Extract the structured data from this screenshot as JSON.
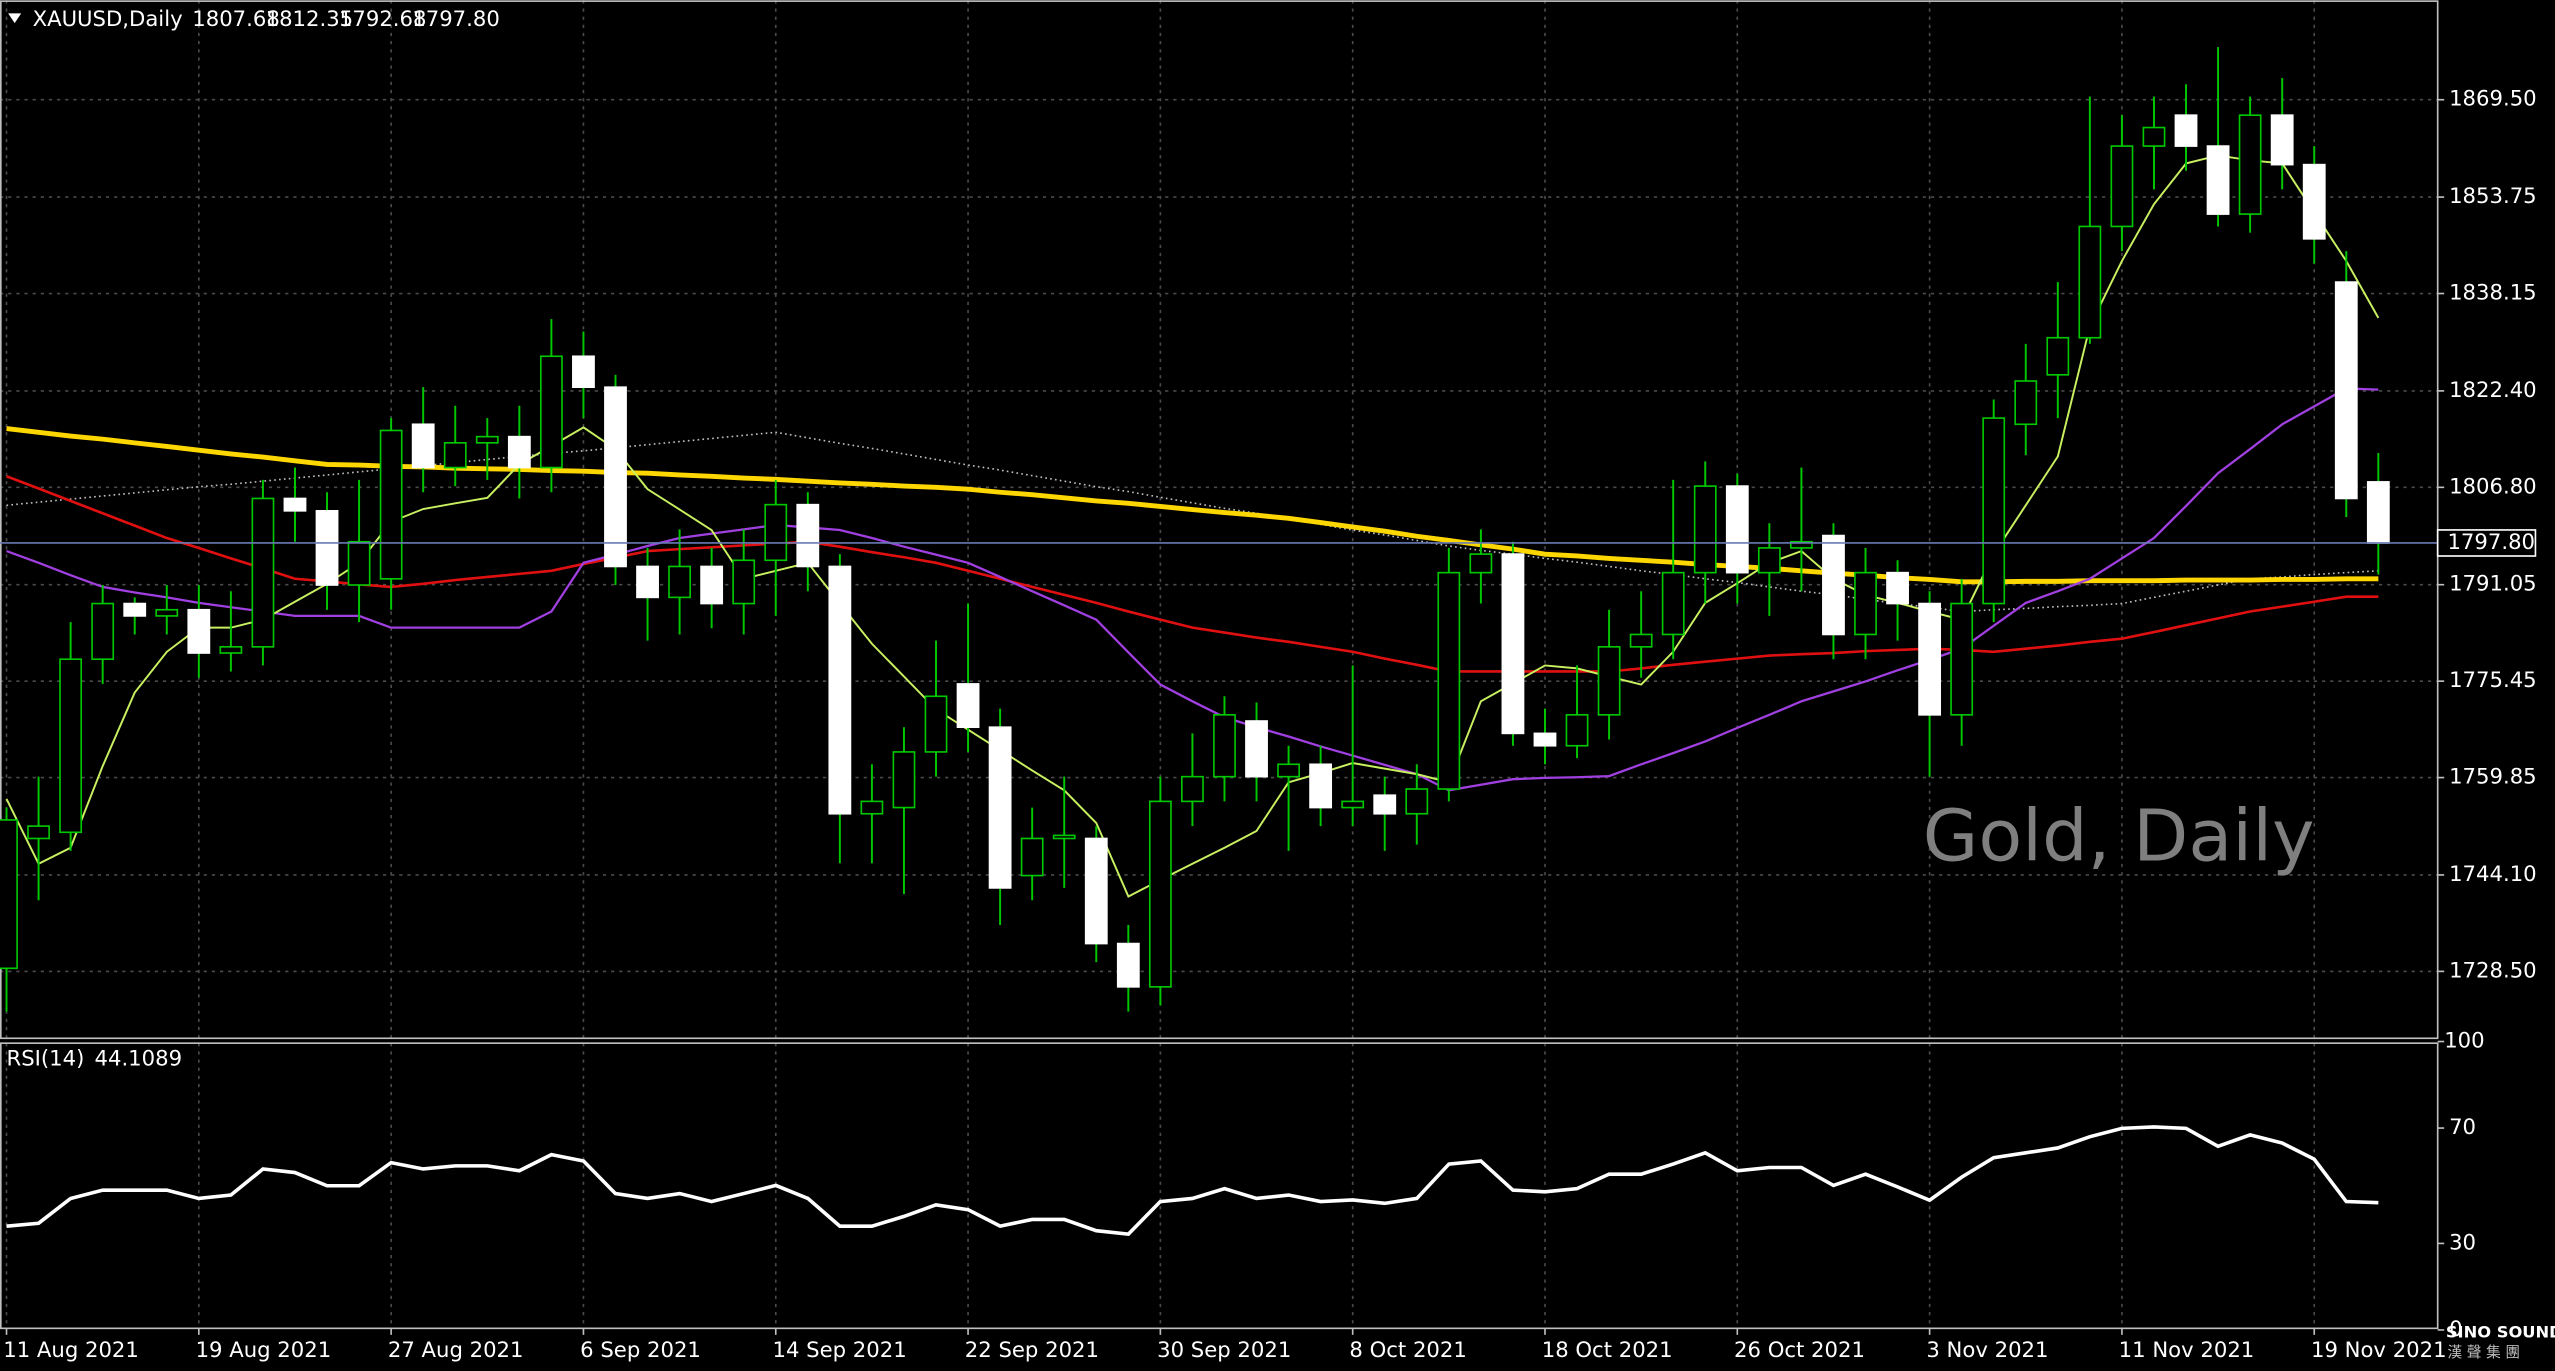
{
  "chart_data": [
    {
      "type": "candlestick",
      "title": "XAUUSD,Daily",
      "close_label": "1797.80",
      "categories": [
        "11 Aug 2021",
        null,
        null,
        null,
        null,
        null,
        "19 Aug 2021",
        null,
        null,
        null,
        null,
        null,
        "27 Aug 2021",
        null,
        null,
        null,
        null,
        null,
        "6 Sep 2021",
        null,
        null,
        null,
        null,
        null,
        "14 Sep 2021",
        null,
        null,
        null,
        null,
        null,
        "22 Sep 2021",
        null,
        null,
        null,
        null,
        null,
        "30 Sep 2021",
        null,
        null,
        null,
        null,
        null,
        "8 Oct 2021",
        null,
        null,
        null,
        null,
        null,
        "18 Oct 2021",
        null,
        null,
        null,
        null,
        null,
        "26 Oct 2021",
        null,
        null,
        null,
        null,
        null,
        "3 Nov 2021",
        null,
        null,
        null,
        null,
        null,
        "11 Nov 2021",
        null,
        null,
        null,
        null,
        null,
        "19 Nov 2021",
        null,
        null
      ],
      "open": [
        1729,
        1750,
        1751,
        1779,
        1788,
        1786,
        1787,
        1780,
        1781,
        1805,
        1803,
        1791,
        1792,
        1817,
        1810,
        1814,
        1815,
        1810,
        1828,
        1823,
        1794,
        1789,
        1794,
        1788,
        1795,
        1804,
        1794,
        1754,
        1755,
        1764,
        1775,
        1768,
        1744,
        1750,
        1750,
        1733,
        1726,
        1756,
        1760,
        1769,
        1760,
        1762,
        1755,
        1757,
        1754,
        1758,
        1793,
        1796,
        1767,
        1765,
        1770,
        1781,
        1783,
        1793,
        1807,
        1793,
        1797,
        1799,
        1783,
        1793,
        1788,
        1770,
        1788,
        1817,
        1825,
        1831,
        1849,
        1862,
        1867,
        1862,
        1851,
        1867,
        1859,
        1840,
        1807.68
      ],
      "high": [
        1755,
        1760,
        1785,
        1791,
        1789,
        1791,
        1791,
        1790,
        1808,
        1810,
        1806,
        1808,
        1818,
        1823,
        1820,
        1818,
        1820,
        1834,
        1832,
        1825,
        1797,
        1800,
        1797,
        1800,
        1808,
        1806,
        1796,
        1762,
        1768,
        1782,
        1788,
        1771,
        1755,
        1760,
        1752,
        1736,
        1760,
        1767,
        1773,
        1772,
        1765,
        1765,
        1778,
        1760,
        1762,
        1797,
        1800,
        1798,
        1771,
        1778,
        1787,
        1790,
        1808,
        1811,
        1809,
        1801,
        1810,
        1801,
        1797,
        1795,
        1790,
        1792,
        1821,
        1830,
        1840,
        1870,
        1867,
        1870,
        1872,
        1878,
        1870,
        1873,
        1862,
        1845,
        1812.35
      ],
      "low": [
        1722,
        1740,
        1748,
        1775,
        1783,
        1783,
        1776,
        1777,
        1778,
        1798,
        1787,
        1785,
        1787,
        1806,
        1807,
        1808,
        1805,
        1806,
        1818,
        1791,
        1782,
        1783,
        1784,
        1783,
        1786,
        1790,
        1746,
        1746,
        1741,
        1760,
        1764,
        1736,
        1740,
        1742,
        1730,
        1722,
        1723,
        1752,
        1756,
        1756,
        1748,
        1752,
        1752,
        1748,
        1749,
        1756,
        1788,
        1765,
        1762,
        1763,
        1766,
        1776,
        1779,
        1788,
        1788,
        1786,
        1790,
        1779,
        1779,
        1782,
        1760,
        1765,
        1785,
        1812,
        1818,
        1830,
        1845,
        1855,
        1858,
        1849,
        1848,
        1855,
        1843,
        1802,
        1792.68
      ],
      "close": [
        1753,
        1752,
        1779,
        1788,
        1786,
        1787,
        1780,
        1781,
        1805,
        1803,
        1791,
        1798,
        1816,
        1810,
        1814,
        1815,
        1810,
        1828,
        1823,
        1794,
        1789,
        1794,
        1788,
        1795,
        1804,
        1794,
        1754,
        1756,
        1764,
        1773,
        1768,
        1742,
        1750,
        1750.5,
        1733,
        1726,
        1756,
        1760,
        1770,
        1760,
        1762,
        1755,
        1756,
        1754,
        1758,
        1793,
        1796,
        1767,
        1765,
        1770,
        1781,
        1783,
        1793,
        1807,
        1793,
        1797,
        1798,
        1783,
        1793,
        1788,
        1770,
        1788,
        1818,
        1824,
        1831,
        1849,
        1862,
        1865,
        1862,
        1851,
        1867,
        1859,
        1847,
        1805,
        1797.8
      ],
      "line_color": "#00c800",
      "bull_fill": "#000000",
      "bear_fill": "#ffffff",
      "price_line_color": "#6a7bb5",
      "series": [
        {
          "color": "#c0c0c0",
          "style": "dotted",
          "values": [
            1803.9,
            1804.4,
            1804.9,
            1805.4,
            1805.9,
            1806.4,
            1806.9,
            1807.3,
            1807.8,
            1808.3,
            1808.8,
            1809.3,
            1809.8,
            1810.3,
            1810.8,
            1811.3,
            1811.8,
            1812.3,
            1812.7,
            1813.2,
            1813.7,
            1814.2,
            1814.7,
            1815.2,
            1815.7,
            1814.8,
            1813.9,
            1813.1,
            1812.2,
            1811.3,
            1810.4,
            1809.6,
            1808.7,
            1807.8,
            1806.9,
            1806.1,
            1805.2,
            1804.3,
            1803.4,
            1802.6,
            1801.7,
            1800.8,
            1799.9,
            1799.1,
            1798.2,
            1797.3,
            1796.6,
            1796.0,
            1795.3,
            1794.7,
            1794.0,
            1793.3,
            1792.7,
            1792.0,
            1791.4,
            1790.7,
            1790.0,
            1789.4,
            1788.7,
            1788.0,
            1787.4,
            1786.7,
            1787.0,
            1787.2,
            1787.5,
            1787.7,
            1788.0,
            1789.0,
            1790.0,
            1791.0,
            1792.0,
            1792.3,
            1792.7,
            1793.0,
            1793.3
          ]
        },
        {
          "color": "#ffd700",
          "width": 3,
          "values": [
            1816.3,
            1815.7,
            1815.1,
            1814.6,
            1814.0,
            1813.4,
            1812.8,
            1812.2,
            1811.7,
            1811.1,
            1810.5,
            1810.4,
            1810.2,
            1810.1,
            1809.9,
            1809.8,
            1809.7,
            1809.5,
            1809.4,
            1809.2,
            1809.1,
            1808.8,
            1808.6,
            1808.3,
            1808.1,
            1807.8,
            1807.5,
            1807.3,
            1807.0,
            1806.8,
            1806.5,
            1806.0,
            1805.6,
            1805.1,
            1804.6,
            1804.2,
            1803.7,
            1803.2,
            1802.7,
            1802.3,
            1801.8,
            1801.1,
            1800.4,
            1799.7,
            1798.9,
            1798.2,
            1797.5,
            1796.8,
            1796.0,
            1795.7,
            1795.3,
            1795.0,
            1794.7,
            1794.3,
            1794.0,
            1793.7,
            1793.3,
            1792.9,
            1792.6,
            1792.2,
            1791.9,
            1791.5,
            1791.5,
            1791.6,
            1791.6,
            1791.7,
            1791.7,
            1791.7,
            1791.8,
            1791.8,
            1791.8,
            1791.9,
            1791.9,
            1792.0,
            1792.0
          ]
        },
        {
          "color": "#e01010",
          "width": 1.6,
          "values": [
            1808.6,
            1806.6,
            1804.6,
            1802.6,
            1800.6,
            1798.6,
            1797.0,
            1795.3,
            1793.7,
            1792.0,
            1791.6,
            1791.1,
            1790.7,
            1791.2,
            1791.8,
            1792.3,
            1792.8,
            1793.3,
            1794.4,
            1795.4,
            1796.5,
            1796.8,
            1797.1,
            1797.4,
            1797.7,
            1798.0,
            1797.2,
            1796.3,
            1795.5,
            1794.6,
            1793.3,
            1792.0,
            1790.7,
            1789.4,
            1788.1,
            1786.7,
            1785.4,
            1784.1,
            1783.3,
            1782.5,
            1781.8,
            1781.0,
            1780.2,
            1779.1,
            1778.1,
            1777.0,
            1777.0,
            1777.0,
            1777.0,
            1777.0,
            1777.0,
            1777.5,
            1778.1,
            1778.6,
            1779.1,
            1779.6,
            1779.8,
            1780.0,
            1780.3,
            1780.5,
            1780.7,
            1780.5,
            1780.2,
            1780.7,
            1781.2,
            1781.8,
            1782.3,
            1783.4,
            1784.5,
            1785.6,
            1786.7,
            1787.5,
            1788.3,
            1789.1,
            1789.1
          ]
        },
        {
          "color": "#a040e0",
          "width": 1.4,
          "values": [
            1796.5,
            1794.6,
            1792.6,
            1790.7,
            1789.8,
            1789.0,
            1788.1,
            1787.4,
            1786.7,
            1786.0,
            1786.0,
            1786.0,
            1784.1,
            1784.1,
            1784.1,
            1784.1,
            1784.1,
            1786.7,
            1794.6,
            1795.9,
            1797.3,
            1798.6,
            1799.3,
            1800.0,
            1800.7,
            1800.3,
            1799.9,
            1798.6,
            1797.2,
            1795.9,
            1794.6,
            1792.3,
            1790.0,
            1787.7,
            1785.4,
            1780.1,
            1774.9,
            1772.2,
            1769.6,
            1768.0,
            1766.5,
            1764.9,
            1763.4,
            1761.9,
            1760.4,
            1757.8,
            1758.7,
            1759.6,
            1759.8,
            1759.9,
            1760.1,
            1762.0,
            1763.8,
            1765.7,
            1767.9,
            1770.0,
            1772.2,
            1773.8,
            1775.4,
            1777.2,
            1778.9,
            1780.7,
            1784.4,
            1788.1,
            1790.0,
            1792.0,
            1795.3,
            1798.6,
            1803.8,
            1809.1,
            1813.0,
            1817.0,
            1819.9,
            1822.8,
            1822.6
          ]
        },
        {
          "color": "#c8f060",
          "width": 1.2,
          "values": [
            1756.4,
            1745.9,
            1748.5,
            1761.7,
            1773.6,
            1780.2,
            1784.1,
            1784.1,
            1785.4,
            1788.3,
            1791.2,
            1794.6,
            1801.2,
            1803.3,
            1804.2,
            1805.1,
            1810.5,
            1813.5,
            1816.5,
            1813.0,
            1806.5,
            1803.2,
            1799.9,
            1792.0,
            1793.3,
            1794.6,
            1788.0,
            1781.5,
            1776.2,
            1770.9,
            1767.6,
            1764.3,
            1761.0,
            1757.8,
            1752.5,
            1740.6,
            1743.3,
            1745.9,
            1748.5,
            1751.2,
            1759.1,
            1760.6,
            1762.2,
            1761.3,
            1760.4,
            1759.1,
            1772.2,
            1775.1,
            1778.0,
            1777.5,
            1776.2,
            1774.9,
            1780.2,
            1788.1,
            1791.3,
            1794.6,
            1796.5,
            1792.0,
            1789.4,
            1788.1,
            1786.7,
            1785.4,
            1796.0,
            1803.9,
            1811.8,
            1832.9,
            1843.4,
            1852.6,
            1859.2,
            1860.5,
            1859.7,
            1859.2,
            1851.3,
            1843.4,
            1834.2
          ]
        }
      ],
      "ylim": [
        1717.68,
        1885.58
      ],
      "yticks": [
        {
          "value": 1869.5,
          "label": "1869.50"
        },
        1853.75,
        1838.15,
        {
          "value": 1822.4,
          "label": "1822.40"
        },
        {
          "value": 1806.8,
          "label": "1806.80"
        },
        1791.05,
        1775.45,
        1759.85,
        {
          "value": 1744.1,
          "label": "1744.10"
        },
        {
          "value": 1728.5,
          "label": "1728.50"
        }
      ],
      "grid": true
    },
    {
      "type": "line",
      "title": "RSI(14)",
      "color": "#ffffff",
      "values": [
        36,
        37,
        45.6,
        48.5,
        48.5,
        48.5,
        45.6,
        46.8,
        55.8,
        54.6,
        50,
        50,
        58,
        55.8,
        56.9,
        56.9,
        55.2,
        60.8,
        58.6,
        47.3,
        45.6,
        47.3,
        44.5,
        47.3,
        50.1,
        45.6,
        36,
        36,
        39.4,
        43.4,
        41.7,
        36,
        38.3,
        38.3,
        34.4,
        33.2,
        44.5,
        45.6,
        49,
        45.6,
        46.8,
        44.5,
        45.1,
        43.9,
        45.6,
        57.5,
        58.6,
        48.5,
        47.9,
        49,
        54,
        54,
        57.5,
        61.4,
        55.2,
        56.3,
        56.3,
        50.1,
        54,
        49.6,
        45,
        53,
        59.7,
        61.4,
        63.1,
        67,
        69.9,
        70.4,
        69.9,
        63.7,
        67.6,
        64.8,
        59.2,
        44.5,
        44.1089
      ],
      "ylim": [
        0,
        100
      ],
      "yticks": [
        100,
        70,
        30,
        0
      ],
      "grid": true
    }
  ],
  "watermark": "Gold, Daily",
  "logo": {
    "name": "SINO SOUND",
    "subtitle": "漢 聲 集 團"
  }
}
